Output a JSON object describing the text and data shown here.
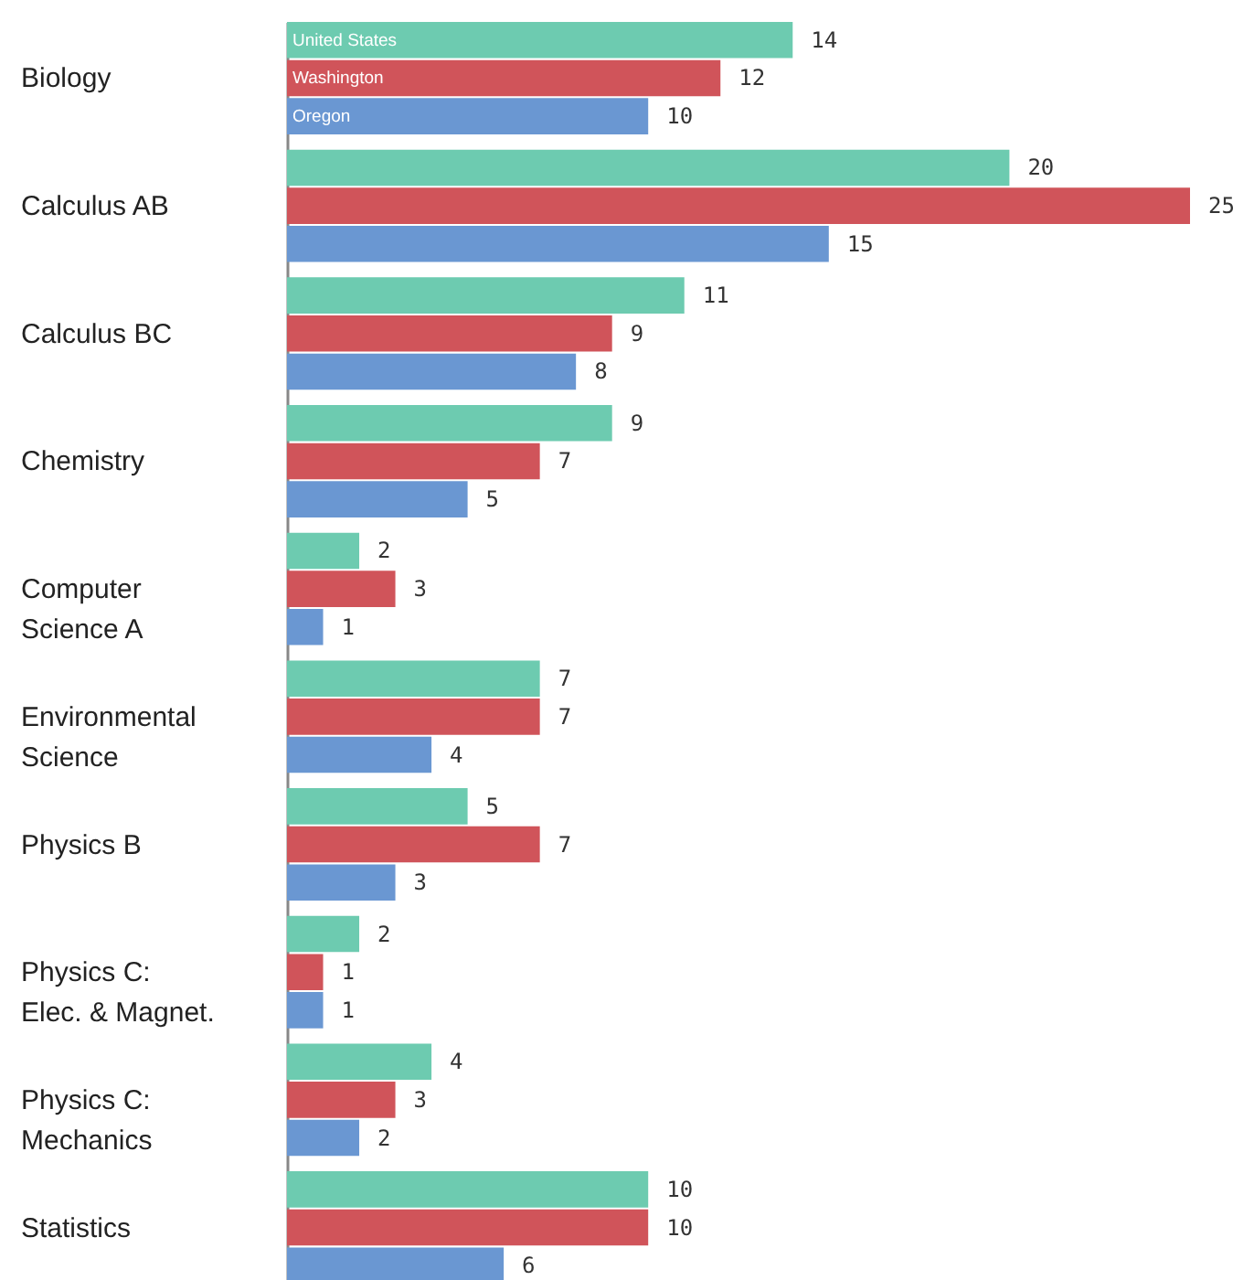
{
  "chart_data": {
    "type": "bar",
    "orientation": "horizontal",
    "data_labels": true,
    "categories": [
      "Biology",
      "Calculus AB",
      "Calculus BC",
      "Chemistry",
      "Computer Science A",
      "Environmental Science",
      "Physics B",
      "Physics C: Elec. & Magnet.",
      "Physics C: Mechanics",
      "Statistics"
    ],
    "series": [
      {
        "name": "United States",
        "color": "#6dcbb0",
        "values": [
          14,
          20,
          11,
          9,
          2,
          7,
          5,
          2,
          4,
          10
        ]
      },
      {
        "name": "Washington",
        "color": "#d0545a",
        "values": [
          12,
          25,
          9,
          7,
          3,
          7,
          7,
          1,
          3,
          10
        ]
      },
      {
        "name": "Oregon",
        "color": "#6a97d2",
        "values": [
          10,
          15,
          8,
          5,
          1,
          4,
          3,
          1,
          2,
          6
        ]
      }
    ]
  }
}
